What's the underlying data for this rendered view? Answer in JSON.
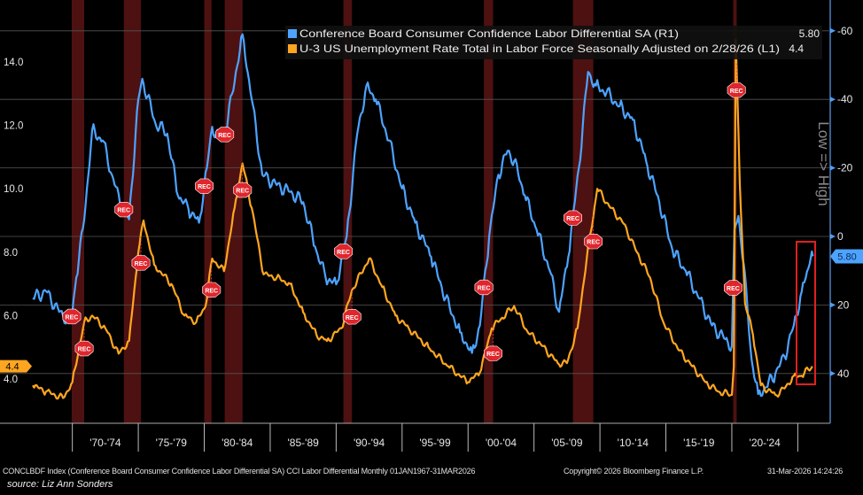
{
  "chart_data": {
    "type": "line",
    "legend_placement": "top-right",
    "grid": true,
    "legend": [
      {
        "name": "Conference Board Consumer Confidence Labor Differential SA  (R1)",
        "last": "5.80",
        "color": "#4da3ff"
      },
      {
        "name": "U-3 US Unemployment Rate Total in Labor Force Seasonally Adjusted on 2/28/26 (L1)",
        "last": "4.4",
        "color": "#ffa620"
      }
    ],
    "left_axis": {
      "ylim": [
        2.9,
        15.0
      ],
      "ticks": [
        "4.0",
        "6.0",
        "8.0",
        "10.0",
        "12.0",
        "14.0"
      ],
      "last_tag": "4.4"
    },
    "right_axis": {
      "ylim": [
        -62,
        53
      ],
      "inverted": true,
      "ticks": [
        "-60",
        "-40",
        "-20",
        "0",
        "20",
        "40"
      ],
      "label": "Low => High",
      "last_tag": "5.80"
    },
    "x_axis": {
      "range": [
        1967.0,
        2026.25
      ],
      "tick_labels": [
        "'70-'74",
        "'75-'79",
        "'80-'84",
        "'85-'89",
        "'90-'94",
        "'95-'99",
        "'00-'04",
        "'05-'09",
        "'10-'14",
        "'15-'19",
        "'20-'24"
      ]
    },
    "recessions": [
      [
        1969.95,
        1970.9
      ],
      [
        1973.9,
        1975.2
      ],
      [
        1980.0,
        1980.55
      ],
      [
        1981.55,
        1982.9
      ],
      [
        1990.55,
        1991.2
      ],
      [
        2001.2,
        2001.9
      ],
      [
        2007.95,
        2009.5
      ],
      [
        2020.1,
        2020.35
      ]
    ],
    "recession_marker": "REC",
    "series": [
      {
        "name": "Conference Board Consumer Confidence Labor Differential SA",
        "axis": "right",
        "color": "#4da3ff",
        "x": [
          1967,
          1968,
          1969.0,
          1969.9,
          1970.3,
          1970.9,
          1971.5,
          1972.3,
          1973.0,
          1973.6,
          1974.3,
          1975.0,
          1975.3,
          1976.3,
          1977.2,
          1978.0,
          1978.8,
          1979.6,
          1980.2,
          1980.6,
          1981.2,
          1981.6,
          1982.4,
          1982.9,
          1983.6,
          1984.4,
          1985.5,
          1986.5,
          1987.5,
          1988.4,
          1989.2,
          1990.0,
          1990.8,
          1991.6,
          1992.3,
          1993.0,
          1994.0,
          1995.0,
          1996.0,
          1997.2,
          1998.3,
          1999.4,
          2000.3,
          2000.9,
          2001.6,
          2002.3,
          2003.0,
          2003.5,
          2004.3,
          2005.2,
          2006.2,
          2006.9,
          2007.6,
          2008.4,
          2009.1,
          2009.7,
          2010.5,
          2011.5,
          2012.5,
          2013.5,
          2014.5,
          2015.5,
          2016.5,
          2017.5,
          2018.5,
          2019.5,
          2020.0,
          2020.2,
          2020.5,
          2020.9,
          2021.5,
          2022.0,
          2022.6,
          2023.3,
          2024.0,
          2024.7,
          2025.3,
          2025.9,
          2026.15
        ],
        "values": [
          18,
          16,
          22,
          25,
          12,
          -5,
          -31,
          -28,
          -18,
          -10,
          -5,
          -40,
          -46,
          -33,
          -30,
          -12,
          -8,
          -4,
          -20,
          -32,
          -28,
          -30,
          -48,
          -59,
          -40,
          -18,
          -15,
          -13,
          -10,
          3,
          12,
          14,
          0,
          -30,
          -44,
          -40,
          -28,
          -14,
          -4,
          6,
          18,
          28,
          34,
          26,
          0,
          -18,
          -25,
          -22,
          -12,
          -2,
          10,
          22,
          6,
          -20,
          -48,
          -44,
          -42,
          -38,
          -34,
          -22,
          -10,
          4,
          10,
          18,
          26,
          30,
          32,
          -2,
          -6,
          8,
          36,
          46,
          44,
          40,
          35,
          26,
          16,
          8,
          5.8
        ]
      },
      {
        "name": "U-3 US Unemployment Rate Total in Labor Force Seasonally Adjusted",
        "axis": "left",
        "color": "#ffa620",
        "x": [
          1967,
          1968,
          1969.3,
          1970.0,
          1970.9,
          1971.5,
          1972.5,
          1973.5,
          1974.3,
          1975.0,
          1975.4,
          1976.2,
          1977.5,
          1978.5,
          1979.4,
          1980.1,
          1980.6,
          1981.5,
          1982.3,
          1982.9,
          1983.6,
          1984.5,
          1985.5,
          1986.5,
          1987.5,
          1988.5,
          1989.3,
          1990.4,
          1991.2,
          1992.5,
          1993.5,
          1994.5,
          1995.5,
          1997.0,
          1998.5,
          2000.0,
          2000.9,
          2001.8,
          2002.5,
          2003.5,
          2004.5,
          2005.5,
          2006.8,
          2007.5,
          2008.3,
          2009.0,
          2009.8,
          2010.8,
          2011.8,
          2012.8,
          2013.8,
          2014.8,
          2016.0,
          2017.0,
          2018.0,
          2019.0,
          2020.0,
          2020.15,
          2020.3,
          2020.6,
          2021.0,
          2021.6,
          2022.2,
          2023.3,
          2024.0,
          2024.7,
          2025.3,
          2025.8,
          2026.1
        ],
        "values": [
          3.8,
          3.6,
          3.4,
          3.9,
          5.8,
          6.0,
          5.6,
          4.8,
          5.2,
          8.0,
          9.0,
          7.6,
          7.0,
          6.0,
          5.8,
          6.3,
          7.8,
          7.4,
          9.4,
          10.8,
          9.4,
          7.3,
          7.2,
          7.0,
          6.1,
          5.4,
          5.2,
          5.6,
          6.8,
          7.8,
          6.9,
          6.0,
          5.6,
          5.0,
          4.4,
          3.9,
          4.2,
          5.6,
          5.9,
          6.3,
          5.5,
          5.1,
          4.5,
          4.5,
          5.6,
          7.8,
          10.0,
          9.4,
          8.9,
          8.0,
          7.2,
          5.8,
          4.9,
          4.4,
          3.9,
          3.6,
          3.5,
          4.4,
          14.7,
          10.2,
          6.4,
          5.4,
          3.8,
          3.5,
          3.7,
          4.1,
          4.1,
          4.3,
          4.4
        ]
      }
    ]
  },
  "footer": {
    "index_text": "CONCLBDF Index (Conference Board Consumer Confidence Labor Differential SA) CCI Labor Differential Monthly 01JAN1967-31MAR2026",
    "copyright": "Copyright© 2026 Bloomberg Finance L.P.",
    "timestamp": "31-Mar-2026 14:24:26",
    "source": "source: Liz Ann Sonders"
  }
}
